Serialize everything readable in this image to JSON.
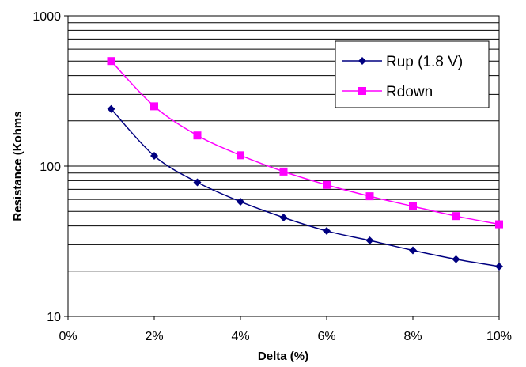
{
  "chart_data": {
    "type": "line",
    "xlabel": "Delta (%)",
    "ylabel": "Resistance (Kohms",
    "xlim": [
      0,
      10
    ],
    "ylim": [
      10,
      1000
    ],
    "yscale": "log",
    "x_tick_labels": [
      "0%",
      "2%",
      "4%",
      "6%",
      "8%",
      "10%"
    ],
    "y_tick_labels": [
      "10",
      "100",
      "1000"
    ],
    "grid": "horizontal major and minor lines",
    "legend_position": "top-right",
    "series": [
      {
        "name": "Rup (1.8 V)",
        "color": "#000080",
        "marker": "diamond",
        "x": [
          1,
          2,
          3,
          4,
          5,
          6,
          7,
          8,
          9,
          10
        ],
        "y": [
          240,
          117,
          78,
          58,
          45.5,
          37,
          32,
          27.5,
          24,
          21.5
        ]
      },
      {
        "name": "Rdown",
        "color": "#FF00FF",
        "marker": "square",
        "x": [
          1,
          2,
          3,
          4,
          5,
          6,
          7,
          8,
          9,
          10
        ],
        "y": [
          500,
          250,
          160,
          118,
          92,
          75,
          63,
          54,
          46.5,
          41
        ]
      }
    ]
  }
}
